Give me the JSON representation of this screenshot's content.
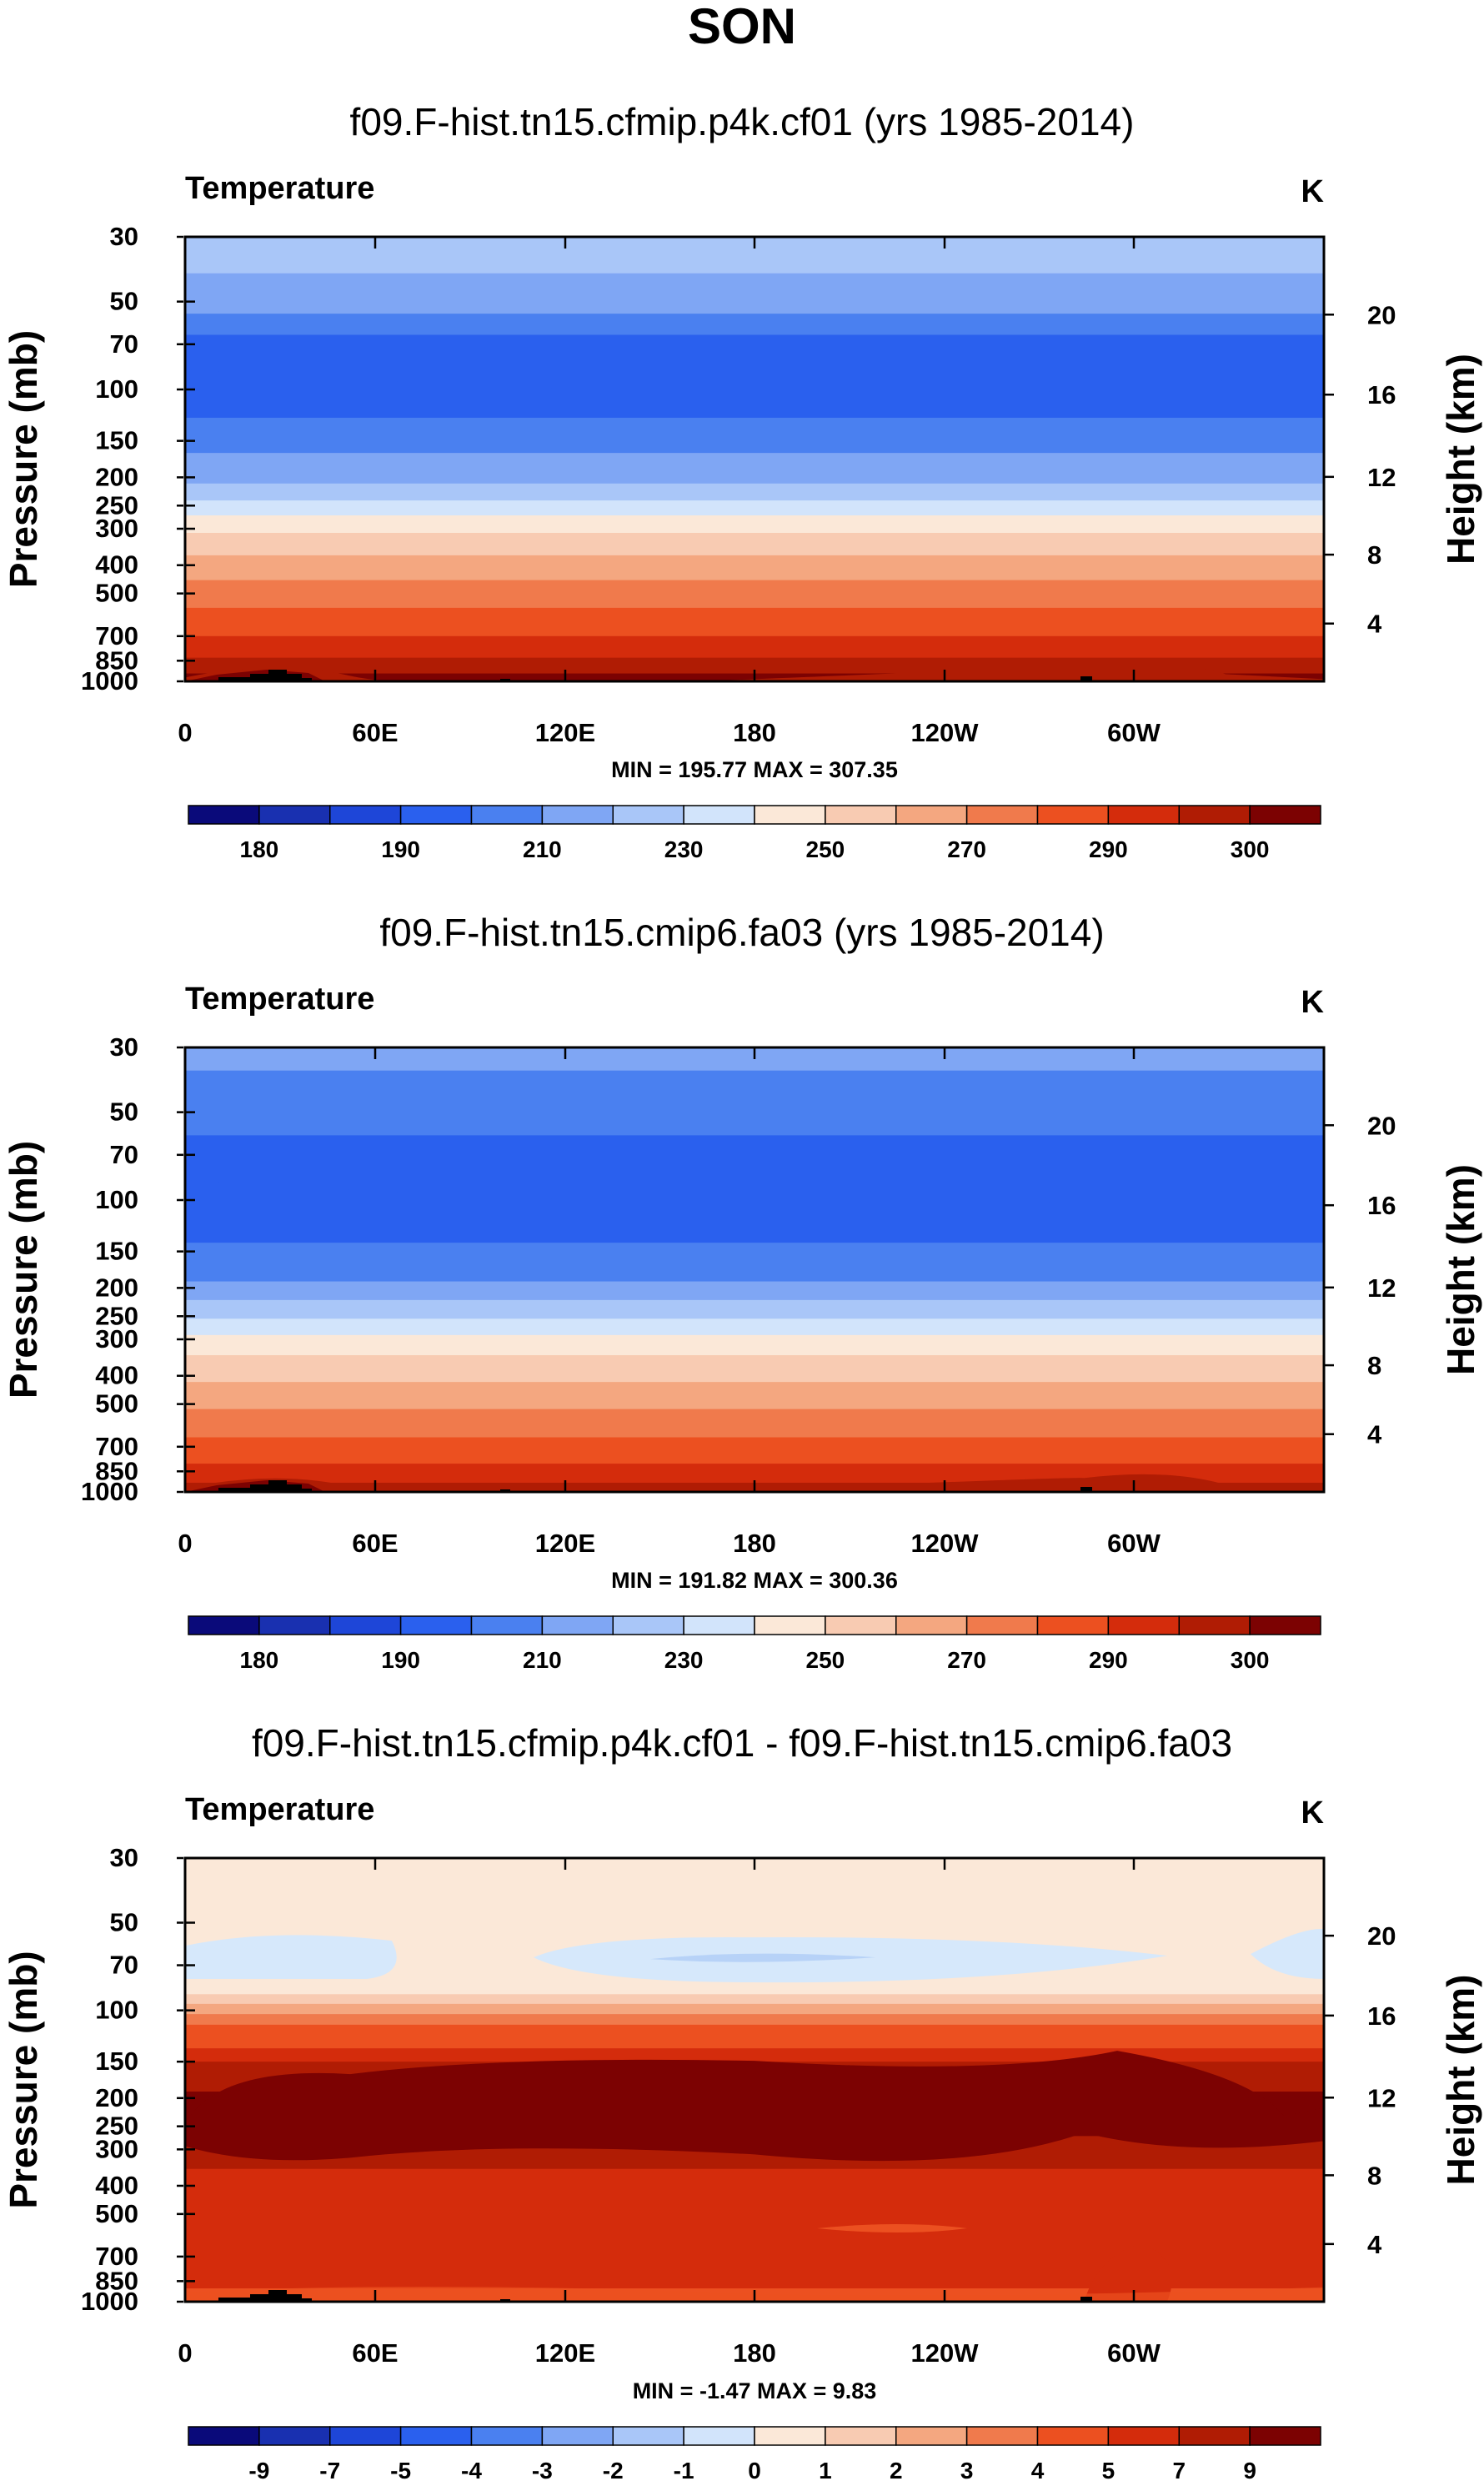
{
  "figure": {
    "title": "SON"
  },
  "colors": {
    "palette": [
      "#0a0a7a",
      "#1930b0",
      "#1e46d8",
      "#2a60ee",
      "#4a80f0",
      "#7fa6f4",
      "#a9c6f8",
      "#d2e4fb",
      "#fbe8d8",
      "#f8cbb2",
      "#f4a780",
      "#f07a4c",
      "#ec5020",
      "#d42c0c",
      "#b01c04",
      "#7c0202"
    ],
    "neg_light": "#d6e8fb",
    "neg_mid": "#b7d2f7"
  },
  "chart_data": [
    {
      "type": "heatmap",
      "title": "f09.F-hist.tn15.cfmip.p4k.cf01 (yrs 1985-2014)",
      "variable": "Temperature",
      "units": "K",
      "ylabel": "Pressure (mb)",
      "y2label": "Height (km)",
      "x": [
        "0",
        "60E",
        "120E",
        "180",
        "120W",
        "60W"
      ],
      "y": [
        "30",
        "50",
        "70",
        "100",
        "150",
        "200",
        "250",
        "300",
        "400",
        "500",
        "700",
        "850",
        "1000"
      ],
      "y2": [
        "20",
        "16",
        "12",
        "8",
        "4"
      ],
      "ylim": [
        1000,
        30
      ],
      "stats": "MIN = 195.77  MAX = 307.35",
      "colorbar_ticks": [
        "180",
        "190",
        "210",
        "230",
        "250",
        "270",
        "290",
        "300"
      ],
      "profile": [
        [
          30,
          6
        ],
        [
          40,
          5
        ],
        [
          55,
          4
        ],
        [
          65,
          3
        ],
        [
          80,
          3
        ],
        [
          125,
          4
        ],
        [
          165,
          5
        ],
        [
          210,
          6
        ],
        [
          240,
          7
        ],
        [
          270,
          8
        ],
        [
          310,
          9
        ],
        [
          370,
          10
        ],
        [
          450,
          11
        ],
        [
          560,
          12
        ],
        [
          700,
          13
        ],
        [
          830,
          14
        ],
        [
          940,
          15
        ],
        [
          1000,
          15
        ]
      ]
    },
    {
      "type": "heatmap",
      "title": "f09.F-hist.tn15.cmip6.fa03 (yrs 1985-2014)",
      "variable": "Temperature",
      "units": "K",
      "ylabel": "Pressure (mb)",
      "y2label": "Height (km)",
      "x": [
        "0",
        "60E",
        "120E",
        "180",
        "120W",
        "60W"
      ],
      "y": [
        "30",
        "50",
        "70",
        "100",
        "150",
        "200",
        "250",
        "300",
        "400",
        "500",
        "700",
        "850",
        "1000"
      ],
      "y2": [
        "20",
        "16",
        "12",
        "8",
        "4"
      ],
      "ylim": [
        1000,
        30
      ],
      "stats": "MIN = 191.82  MAX = 300.36",
      "colorbar_ticks": [
        "180",
        "190",
        "210",
        "230",
        "250",
        "270",
        "290",
        "300"
      ],
      "profile": [
        [
          30,
          5
        ],
        [
          36,
          4
        ],
        [
          60,
          3
        ],
        [
          120,
          3
        ],
        [
          140,
          4
        ],
        [
          190,
          5
        ],
        [
          220,
          6
        ],
        [
          255,
          7
        ],
        [
          290,
          8
        ],
        [
          340,
          9
        ],
        [
          420,
          10
        ],
        [
          520,
          11
        ],
        [
          650,
          12
        ],
        [
          800,
          13
        ],
        [
          930,
          14
        ],
        [
          1000,
          15
        ]
      ]
    },
    {
      "type": "heatmap",
      "title": "f09.F-hist.tn15.cfmip.p4k.cf01 - f09.F-hist.tn15.cmip6.fa03",
      "variable": "Temperature",
      "units": "K",
      "ylabel": "Pressure (mb)",
      "y2label": "Height (km)",
      "x": [
        "0",
        "60E",
        "120E",
        "180",
        "120W",
        "60W"
      ],
      "y": [
        "30",
        "50",
        "70",
        "100",
        "150",
        "200",
        "250",
        "300",
        "400",
        "500",
        "700",
        "850",
        "1000"
      ],
      "y2": [
        "20",
        "16",
        "12",
        "8",
        "4"
      ],
      "ylim": [
        1000,
        30
      ],
      "stats": "MIN = -1.47  MAX = 9.83",
      "colorbar_ticks": [
        "-9",
        "-7",
        "-5",
        "-4",
        "-3",
        "-2",
        "-1",
        "0",
        "1",
        "2",
        "3",
        "4",
        "5",
        "7",
        "9"
      ],
      "profile": [
        [
          30,
          8
        ],
        [
          80,
          8
        ],
        [
          88,
          9
        ],
        [
          95,
          10
        ],
        [
          103,
          11
        ],
        [
          112,
          12
        ],
        [
          135,
          13
        ],
        [
          150,
          14
        ],
        [
          190,
          15
        ],
        [
          270,
          14
        ],
        [
          350,
          13
        ],
        [
          900,
          12
        ],
        [
          1000,
          12
        ]
      ]
    }
  ]
}
